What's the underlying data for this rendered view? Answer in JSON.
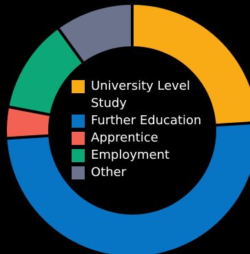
{
  "chart_data": {
    "type": "pie",
    "style": "donut",
    "legend_position": "center",
    "slices": [
      {
        "label": "University Level Study",
        "value": 24,
        "color": "#f9ab16"
      },
      {
        "label": "Further Education",
        "value": 50,
        "color": "#0875c4"
      },
      {
        "label": "Apprentice",
        "value": 4,
        "color": "#f36153"
      },
      {
        "label": "Employment",
        "value": 12,
        "color": "#0da877"
      },
      {
        "label": "Other",
        "value": 10,
        "color": "#6b748c"
      }
    ]
  },
  "legend": {
    "items": [
      {
        "line1": "University Level",
        "line2": "Study"
      },
      {
        "line1": "Further Education",
        "line2": ""
      },
      {
        "line1": "Apprentice",
        "line2": ""
      },
      {
        "line1": "Employment",
        "line2": ""
      },
      {
        "line1": "Other",
        "line2": ""
      }
    ]
  }
}
